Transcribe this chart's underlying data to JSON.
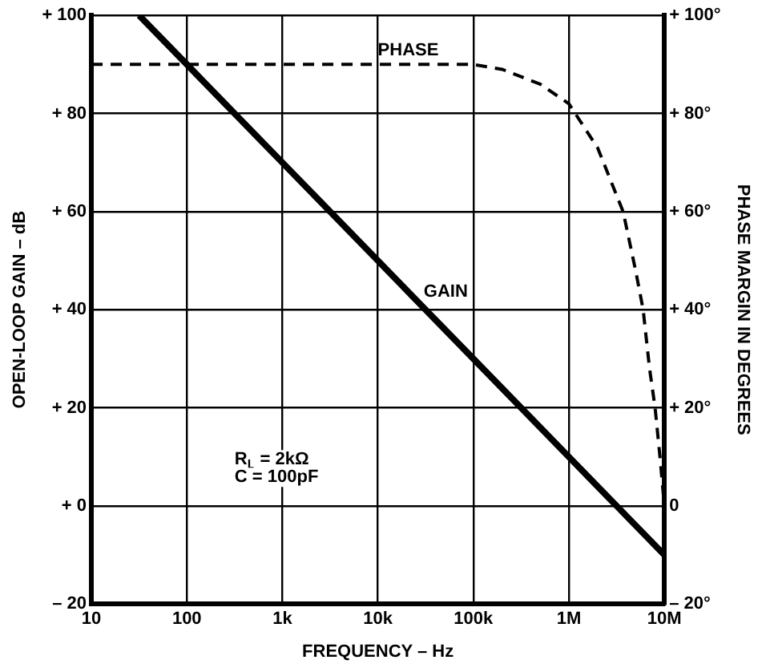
{
  "chart_data": {
    "type": "line",
    "xlabel": "FREQUENCY – Hz",
    "ylabel": "OPEN-LOOP GAIN – dB",
    "y2label": "PHASE MARGIN IN DEGREES",
    "log": "x",
    "grid": true,
    "legend": false,
    "marker": "none",
    "xlim": [
      10,
      10000000
    ],
    "xticks": [
      {
        "value": 10,
        "label": "10"
      },
      {
        "value": 100,
        "label": "100"
      },
      {
        "value": 1000,
        "label": "1k"
      },
      {
        "value": 10000,
        "label": "10k"
      },
      {
        "value": 100000,
        "label": "100k"
      },
      {
        "value": 1000000,
        "label": "1M"
      },
      {
        "value": 10000000,
        "label": "10M"
      }
    ],
    "ylim": [
      -20,
      100
    ],
    "yticks": [
      {
        "value": -20,
        "label": "– 20"
      },
      {
        "value": 0,
        "label": "+ 0"
      },
      {
        "value": 20,
        "label": "+ 20"
      },
      {
        "value": 40,
        "label": "+ 40"
      },
      {
        "value": 60,
        "label": "+ 60"
      },
      {
        "value": 80,
        "label": "+ 80"
      },
      {
        "value": 100,
        "label": "+ 100"
      }
    ],
    "y2lim": [
      -20,
      100
    ],
    "y2ticks": [
      {
        "value": -20,
        "label": "– 20°"
      },
      {
        "value": 0,
        "label": "0"
      },
      {
        "value": 20,
        "label": "+ 20°"
      },
      {
        "value": 40,
        "label": "+ 40°"
      },
      {
        "value": 60,
        "label": "+ 60°"
      },
      {
        "value": 80,
        "label": "+ 80°"
      },
      {
        "value": 100,
        "label": "+ 100°"
      }
    ],
    "series": [
      {
        "name": "GAIN",
        "color": "#000000",
        "line_style": "solid",
        "x": [
          31.6,
          100,
          1000,
          10000,
          100000,
          1000000,
          10000000
        ],
        "values": [
          100,
          90,
          70,
          50,
          30,
          10,
          -10
        ]
      },
      {
        "name": "PHASE",
        "color": "#000000",
        "line_style": "dashed",
        "axis": "y2",
        "x": [
          10,
          100000,
          200000,
          500000,
          1000000,
          2000000,
          3700000,
          5000000,
          6000000,
          7000000,
          8000000,
          9000000,
          10000000
        ],
        "values": [
          90,
          90,
          89,
          86,
          82,
          73,
          60,
          48,
          40,
          28,
          20,
          10,
          0
        ]
      }
    ],
    "annotations": [
      "R$_{L}$ = 2kΩ",
      "C = 100pF"
    ]
  }
}
